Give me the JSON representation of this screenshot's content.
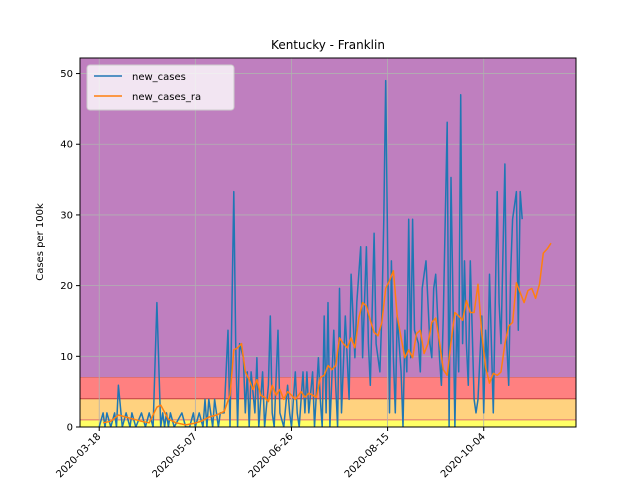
{
  "chart_data": {
    "type": "line",
    "title": "Kentucky - Franklin",
    "xlabel": "",
    "ylabel": "Cases per 100k",
    "x_range": [
      "2020-03-08",
      "2020-11-21"
    ],
    "ylim": [
      0,
      52.2
    ],
    "yticks": [
      0,
      10,
      20,
      30,
      40,
      50
    ],
    "xticks": [
      "2020-03-18",
      "2020-05-07",
      "2020-06-26",
      "2020-08-15",
      "2020-10-04"
    ],
    "grid": true,
    "legend_position": "top-left",
    "background_bands": [
      {
        "from": 0,
        "to": 1,
        "color": "#ffff66"
      },
      {
        "from": 1,
        "to": 4,
        "color": "#ffd27f"
      },
      {
        "from": 4,
        "to": 7,
        "color": "#ff8080"
      },
      {
        "from": 7,
        "to": 52.2,
        "color": "#bf7fbf"
      }
    ],
    "series": [
      {
        "name": "new_cases",
        "color": "#1f77b4",
        "points": [
          [
            "2020-03-18",
            0
          ],
          [
            "2020-03-20",
            2
          ],
          [
            "2020-03-21",
            0
          ],
          [
            "2020-03-22",
            2
          ],
          [
            "2020-03-24",
            0
          ],
          [
            "2020-03-26",
            2
          ],
          [
            "2020-03-27",
            0
          ],
          [
            "2020-03-28",
            5.9
          ],
          [
            "2020-03-30",
            0
          ],
          [
            "2020-04-01",
            2
          ],
          [
            "2020-04-03",
            0
          ],
          [
            "2020-04-04",
            2
          ],
          [
            "2020-04-06",
            0
          ],
          [
            "2020-04-09",
            2
          ],
          [
            "2020-04-11",
            0
          ],
          [
            "2020-04-13",
            2
          ],
          [
            "2020-04-15",
            0
          ],
          [
            "2020-04-17",
            17.6
          ],
          [
            "2020-04-19",
            0
          ],
          [
            "2020-04-20",
            2
          ],
          [
            "2020-04-21",
            0
          ],
          [
            "2020-04-22",
            2
          ],
          [
            "2020-04-23",
            0
          ],
          [
            "2020-04-24",
            2
          ],
          [
            "2020-04-26",
            0
          ],
          [
            "2020-04-30",
            2
          ],
          [
            "2020-05-02",
            0
          ],
          [
            "2020-05-04",
            0
          ],
          [
            "2020-05-06",
            2
          ],
          [
            "2020-05-07",
            0
          ],
          [
            "2020-05-09",
            2
          ],
          [
            "2020-05-11",
            0
          ],
          [
            "2020-05-12",
            3.9
          ],
          [
            "2020-05-13",
            0
          ],
          [
            "2020-05-14",
            3.9
          ],
          [
            "2020-05-16",
            0
          ],
          [
            "2020-05-17",
            3.9
          ],
          [
            "2020-05-19",
            0
          ],
          [
            "2020-05-20",
            2
          ],
          [
            "2020-05-22",
            2
          ],
          [
            "2020-05-24",
            13.7
          ],
          [
            "2020-05-25",
            0
          ],
          [
            "2020-05-27",
            33.3
          ],
          [
            "2020-05-28",
            11.8
          ],
          [
            "2020-05-29",
            0
          ],
          [
            "2020-05-30",
            11.8
          ],
          [
            "2020-06-01",
            9.8
          ],
          [
            "2020-06-02",
            2
          ],
          [
            "2020-06-03",
            7.8
          ],
          [
            "2020-06-04",
            0
          ],
          [
            "2020-06-05",
            7.8
          ],
          [
            "2020-06-07",
            2
          ],
          [
            "2020-06-08",
            9.8
          ],
          [
            "2020-06-09",
            0
          ],
          [
            "2020-06-11",
            7.8
          ],
          [
            "2020-06-12",
            0
          ],
          [
            "2020-06-14",
            5.9
          ],
          [
            "2020-06-15",
            15.7
          ],
          [
            "2020-06-16",
            2
          ],
          [
            "2020-06-17",
            0
          ],
          [
            "2020-06-19",
            13.7
          ],
          [
            "2020-06-20",
            2
          ],
          [
            "2020-06-22",
            0
          ],
          [
            "2020-06-24",
            5.9
          ],
          [
            "2020-06-25",
            2
          ],
          [
            "2020-06-26",
            0
          ],
          [
            "2020-06-28",
            7.8
          ],
          [
            "2020-06-29",
            2
          ],
          [
            "2020-06-30",
            0
          ],
          [
            "2020-07-02",
            7.8
          ],
          [
            "2020-07-03",
            2
          ],
          [
            "2020-07-04",
            7.8
          ],
          [
            "2020-07-05",
            2
          ],
          [
            "2020-07-07",
            7.8
          ],
          [
            "2020-07-08",
            0
          ],
          [
            "2020-07-10",
            9.8
          ],
          [
            "2020-07-11",
            3.9
          ],
          [
            "2020-07-12",
            0
          ],
          [
            "2020-07-13",
            15.7
          ],
          [
            "2020-07-14",
            2
          ],
          [
            "2020-07-15",
            17.6
          ],
          [
            "2020-07-16",
            0
          ],
          [
            "2020-07-18",
            13.7
          ],
          [
            "2020-07-19",
            5.9
          ],
          [
            "2020-07-20",
            0
          ],
          [
            "2020-07-21",
            19.6
          ],
          [
            "2020-07-22",
            2
          ],
          [
            "2020-07-24",
            15.7
          ],
          [
            "2020-07-25",
            9.8
          ],
          [
            "2020-07-26",
            3.9
          ],
          [
            "2020-07-27",
            21.6
          ],
          [
            "2020-07-29",
            9.8
          ],
          [
            "2020-07-30",
            17.6
          ],
          [
            "2020-08-01",
            25.5
          ],
          [
            "2020-08-02",
            9.8
          ],
          [
            "2020-08-04",
            25.5
          ],
          [
            "2020-08-05",
            11.8
          ],
          [
            "2020-08-06",
            5.9
          ],
          [
            "2020-08-08",
            27.4
          ],
          [
            "2020-08-09",
            11.8
          ],
          [
            "2020-08-11",
            7.8
          ],
          [
            "2020-08-12",
            15.7
          ],
          [
            "2020-08-13",
            29.4
          ],
          [
            "2020-08-14",
            49
          ],
          [
            "2020-08-16",
            2
          ],
          [
            "2020-08-17",
            23.5
          ],
          [
            "2020-08-18",
            9.8
          ],
          [
            "2020-08-19",
            2
          ],
          [
            "2020-08-20",
            15.7
          ],
          [
            "2020-08-22",
            7.8
          ],
          [
            "2020-08-23",
            0
          ],
          [
            "2020-08-24",
            13.7
          ],
          [
            "2020-08-25",
            7.8
          ],
          [
            "2020-08-26",
            29.4
          ],
          [
            "2020-08-27",
            9.8
          ],
          [
            "2020-08-28",
            29.4
          ],
          [
            "2020-08-29",
            13.7
          ],
          [
            "2020-08-31",
            11.8
          ],
          [
            "2020-09-01",
            7.8
          ],
          [
            "2020-09-02",
            19.6
          ],
          [
            "2020-09-03",
            21.6
          ],
          [
            "2020-09-04",
            23.5
          ],
          [
            "2020-09-06",
            11.8
          ],
          [
            "2020-09-07",
            9.8
          ],
          [
            "2020-09-08",
            19.6
          ],
          [
            "2020-09-09",
            21.6
          ],
          [
            "2020-09-11",
            9.8
          ],
          [
            "2020-09-12",
            5.9
          ],
          [
            "2020-09-13",
            15.7
          ],
          [
            "2020-09-15",
            43.1
          ],
          [
            "2020-09-16",
            0
          ],
          [
            "2020-09-17",
            35.3
          ],
          [
            "2020-09-18",
            17.6
          ],
          [
            "2020-09-19",
            0
          ],
          [
            "2020-09-20",
            15.7
          ],
          [
            "2020-09-21",
            7.8
          ],
          [
            "2020-09-22",
            47
          ],
          [
            "2020-09-23",
            11.8
          ],
          [
            "2020-09-24",
            23.5
          ],
          [
            "2020-09-25",
            11.8
          ],
          [
            "2020-09-26",
            5.9
          ],
          [
            "2020-09-27",
            23.5
          ],
          [
            "2020-09-28",
            13.7
          ],
          [
            "2020-09-29",
            3.9
          ],
          [
            "2020-09-30",
            2
          ],
          [
            "2020-10-01",
            3.9
          ],
          [
            "2020-10-03",
            15.7
          ],
          [
            "2020-10-04",
            2
          ],
          [
            "2020-10-05",
            13.7
          ],
          [
            "2020-10-06",
            7.8
          ],
          [
            "2020-10-07",
            21.6
          ],
          [
            "2020-10-09",
            2
          ],
          [
            "2020-10-11",
            33.3
          ],
          [
            "2020-10-12",
            17.6
          ],
          [
            "2020-10-13",
            11.8
          ],
          [
            "2020-10-15",
            37.2
          ],
          [
            "2020-10-16",
            11.8
          ],
          [
            "2020-10-17",
            5.9
          ],
          [
            "2020-10-18",
            21.6
          ],
          [
            "2020-10-19",
            29.4
          ],
          [
            "2020-10-21",
            33.3
          ],
          [
            "2020-10-22",
            13.7
          ],
          [
            "2020-10-23",
            33.3
          ],
          [
            "2020-10-24",
            29.4
          ]
        ]
      },
      {
        "name": "new_cases_ra",
        "color": "#ff7f0e",
        "points": [
          [
            "2020-03-20",
            0.6
          ],
          [
            "2020-03-24",
            0.8
          ],
          [
            "2020-03-28",
            1.7
          ],
          [
            "2020-04-01",
            1.4
          ],
          [
            "2020-04-05",
            1.1
          ],
          [
            "2020-04-09",
            0.8
          ],
          [
            "2020-04-13",
            0.6
          ],
          [
            "2020-04-17",
            2.8
          ],
          [
            "2020-04-19",
            3.1
          ],
          [
            "2020-04-23",
            1.1
          ],
          [
            "2020-04-27",
            0.6
          ],
          [
            "2020-05-02",
            0.3
          ],
          [
            "2020-05-06",
            0.5
          ],
          [
            "2020-05-10",
            0.8
          ],
          [
            "2020-05-14",
            1.4
          ],
          [
            "2020-05-18",
            1.7
          ],
          [
            "2020-05-22",
            2.2
          ],
          [
            "2020-05-25",
            4.5
          ],
          [
            "2020-05-27",
            10.9
          ],
          [
            "2020-05-29",
            11.2
          ],
          [
            "2020-05-31",
            11.8
          ],
          [
            "2020-06-02",
            7.8
          ],
          [
            "2020-06-04",
            6.7
          ],
          [
            "2020-06-06",
            5.3
          ],
          [
            "2020-06-08",
            6.7
          ],
          [
            "2020-06-10",
            4.5
          ],
          [
            "2020-06-12",
            4.2
          ],
          [
            "2020-06-14",
            3.6
          ],
          [
            "2020-06-16",
            5.9
          ],
          [
            "2020-06-18",
            4.5
          ],
          [
            "2020-06-20",
            5.3
          ],
          [
            "2020-06-22",
            3.9
          ],
          [
            "2020-06-24",
            5.0
          ],
          [
            "2020-06-26",
            4.5
          ],
          [
            "2020-06-28",
            3.9
          ],
          [
            "2020-07-01",
            5.0
          ],
          [
            "2020-07-03",
            4.2
          ],
          [
            "2020-07-05",
            4.8
          ],
          [
            "2020-07-07",
            4.5
          ],
          [
            "2020-07-09",
            4.2
          ],
          [
            "2020-07-11",
            7.0
          ],
          [
            "2020-07-13",
            7.3
          ],
          [
            "2020-07-15",
            8.7
          ],
          [
            "2020-07-17",
            8.1
          ],
          [
            "2020-07-19",
            8.7
          ],
          [
            "2020-07-21",
            12.6
          ],
          [
            "2020-07-23",
            11.8
          ],
          [
            "2020-07-25",
            11.2
          ],
          [
            "2020-07-27",
            12.6
          ],
          [
            "2020-07-29",
            11.2
          ],
          [
            "2020-07-31",
            15.4
          ],
          [
            "2020-08-02",
            17.6
          ],
          [
            "2020-08-04",
            17.1
          ],
          [
            "2020-08-06",
            15.1
          ],
          [
            "2020-08-08",
            13.4
          ],
          [
            "2020-08-10",
            12.9
          ],
          [
            "2020-08-12",
            14.8
          ],
          [
            "2020-08-14",
            19.6
          ],
          [
            "2020-08-16",
            20.7
          ],
          [
            "2020-08-18",
            22.1
          ],
          [
            "2020-08-20",
            15.7
          ],
          [
            "2020-08-22",
            12.6
          ],
          [
            "2020-08-24",
            9.8
          ],
          [
            "2020-08-26",
            10.9
          ],
          [
            "2020-08-28",
            9.8
          ],
          [
            "2020-08-30",
            13.2
          ],
          [
            "2020-09-01",
            13.7
          ],
          [
            "2020-09-03",
            10.4
          ],
          [
            "2020-09-05",
            11.8
          ],
          [
            "2020-09-07",
            14.8
          ],
          [
            "2020-09-09",
            15.4
          ],
          [
            "2020-09-11",
            12.0
          ],
          [
            "2020-09-13",
            8.1
          ],
          [
            "2020-09-15",
            7.3
          ],
          [
            "2020-09-17",
            12.0
          ],
          [
            "2020-09-19",
            16.2
          ],
          [
            "2020-09-21",
            15.7
          ],
          [
            "2020-09-23",
            15.1
          ],
          [
            "2020-09-25",
            17.9
          ],
          [
            "2020-09-27",
            16.2
          ],
          [
            "2020-09-29",
            16.2
          ],
          [
            "2020-10-01",
            20.2
          ],
          [
            "2020-10-03",
            13.2
          ],
          [
            "2020-10-05",
            8.4
          ],
          [
            "2020-10-07",
            6.2
          ],
          [
            "2020-10-09",
            7.6
          ],
          [
            "2020-10-11",
            7.3
          ],
          [
            "2020-10-13",
            7.8
          ],
          [
            "2020-10-15",
            11.8
          ],
          [
            "2020-10-17",
            14.3
          ],
          [
            "2020-10-19",
            14.8
          ],
          [
            "2020-10-21",
            20.4
          ],
          [
            "2020-10-23",
            19.0
          ],
          [
            "2020-10-25",
            17.6
          ],
          [
            "2020-10-27",
            19.3
          ],
          [
            "2020-10-29",
            19.6
          ],
          [
            "2020-10-31",
            18.2
          ],
          [
            "2020-11-02",
            20.2
          ],
          [
            "2020-11-04",
            24.6
          ],
          [
            "2020-11-06",
            25.2
          ],
          [
            "2020-11-08",
            26.0
          ]
        ]
      }
    ]
  }
}
